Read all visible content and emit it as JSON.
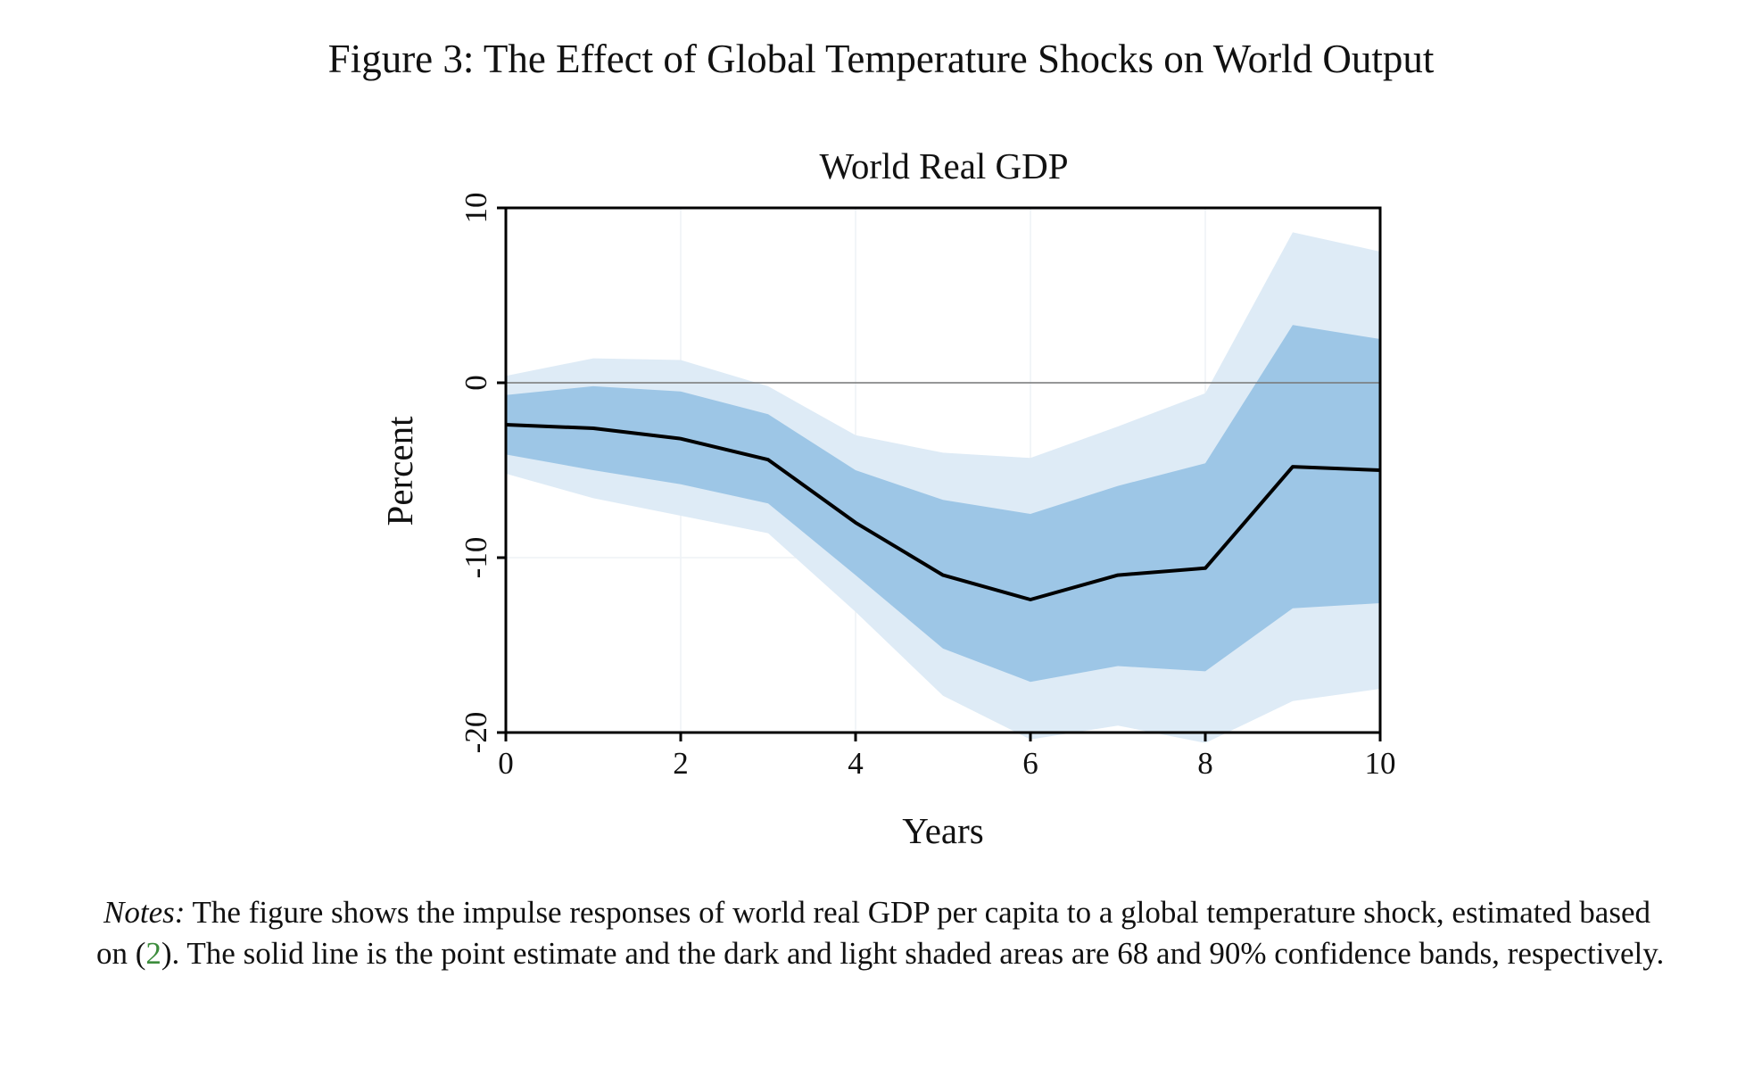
{
  "figure": {
    "caption": "Figure 3: The Effect of Global Temperature Shocks on World Output"
  },
  "chart_data": {
    "type": "line",
    "title": "World Real GDP",
    "xlabel": "Years",
    "ylabel": "Percent",
    "xlim": [
      0,
      10
    ],
    "ylim": [
      -20,
      10
    ],
    "x_ticks": [
      "0",
      "2",
      "4",
      "6",
      "8",
      "10"
    ],
    "y_ticks": [
      "10",
      "0",
      "-10",
      "-20"
    ],
    "x_tick_values": [
      0,
      2,
      4,
      6,
      8,
      10
    ],
    "y_tick_values": [
      10,
      0,
      -10,
      -20
    ],
    "grid": true,
    "x": [
      0,
      1,
      2,
      3,
      4,
      5,
      6,
      7,
      8,
      9,
      10
    ],
    "series": [
      {
        "role": "point_estimate",
        "values": [
          -2.4,
          -2.6,
          -3.2,
          -4.4,
          -8.0,
          -11.0,
          -12.4,
          -11.0,
          -10.6,
          -4.8,
          -5.0
        ]
      },
      {
        "role": "band_68_upper",
        "values": [
          -0.7,
          -0.2,
          -0.5,
          -1.8,
          -5.0,
          -6.7,
          -7.5,
          -5.9,
          -4.6,
          3.3,
          2.5
        ]
      },
      {
        "role": "band_68_lower",
        "values": [
          -4.1,
          -5.0,
          -5.8,
          -6.9,
          -11.0,
          -15.2,
          -17.1,
          -16.2,
          -16.5,
          -12.9,
          -12.6
        ]
      },
      {
        "role": "band_90_upper",
        "values": [
          0.4,
          1.4,
          1.3,
          -0.2,
          -3.0,
          -4.0,
          -4.3,
          -2.5,
          -0.6,
          8.6,
          7.5
        ]
      },
      {
        "role": "band_90_lower",
        "values": [
          -5.2,
          -6.6,
          -7.6,
          -8.6,
          -13.1,
          -17.9,
          -20.4,
          -19.6,
          -20.6,
          -18.2,
          -17.5
        ]
      }
    ],
    "colors": {
      "line": "#000000",
      "band_68": "#9dc6e6",
      "band_90": "#deebf6",
      "zero_line": "#777777",
      "grid": "#eef2f5"
    }
  },
  "notes": {
    "lead": "Notes:",
    "text_1": " The figure shows the impulse responses of world real GDP per capita to a global temperature shock, estimated based on (",
    "ref": "2",
    "text_2": "). The solid line is the point estimate and the dark and light shaded areas are 68 and 90% confidence bands, respectively."
  }
}
